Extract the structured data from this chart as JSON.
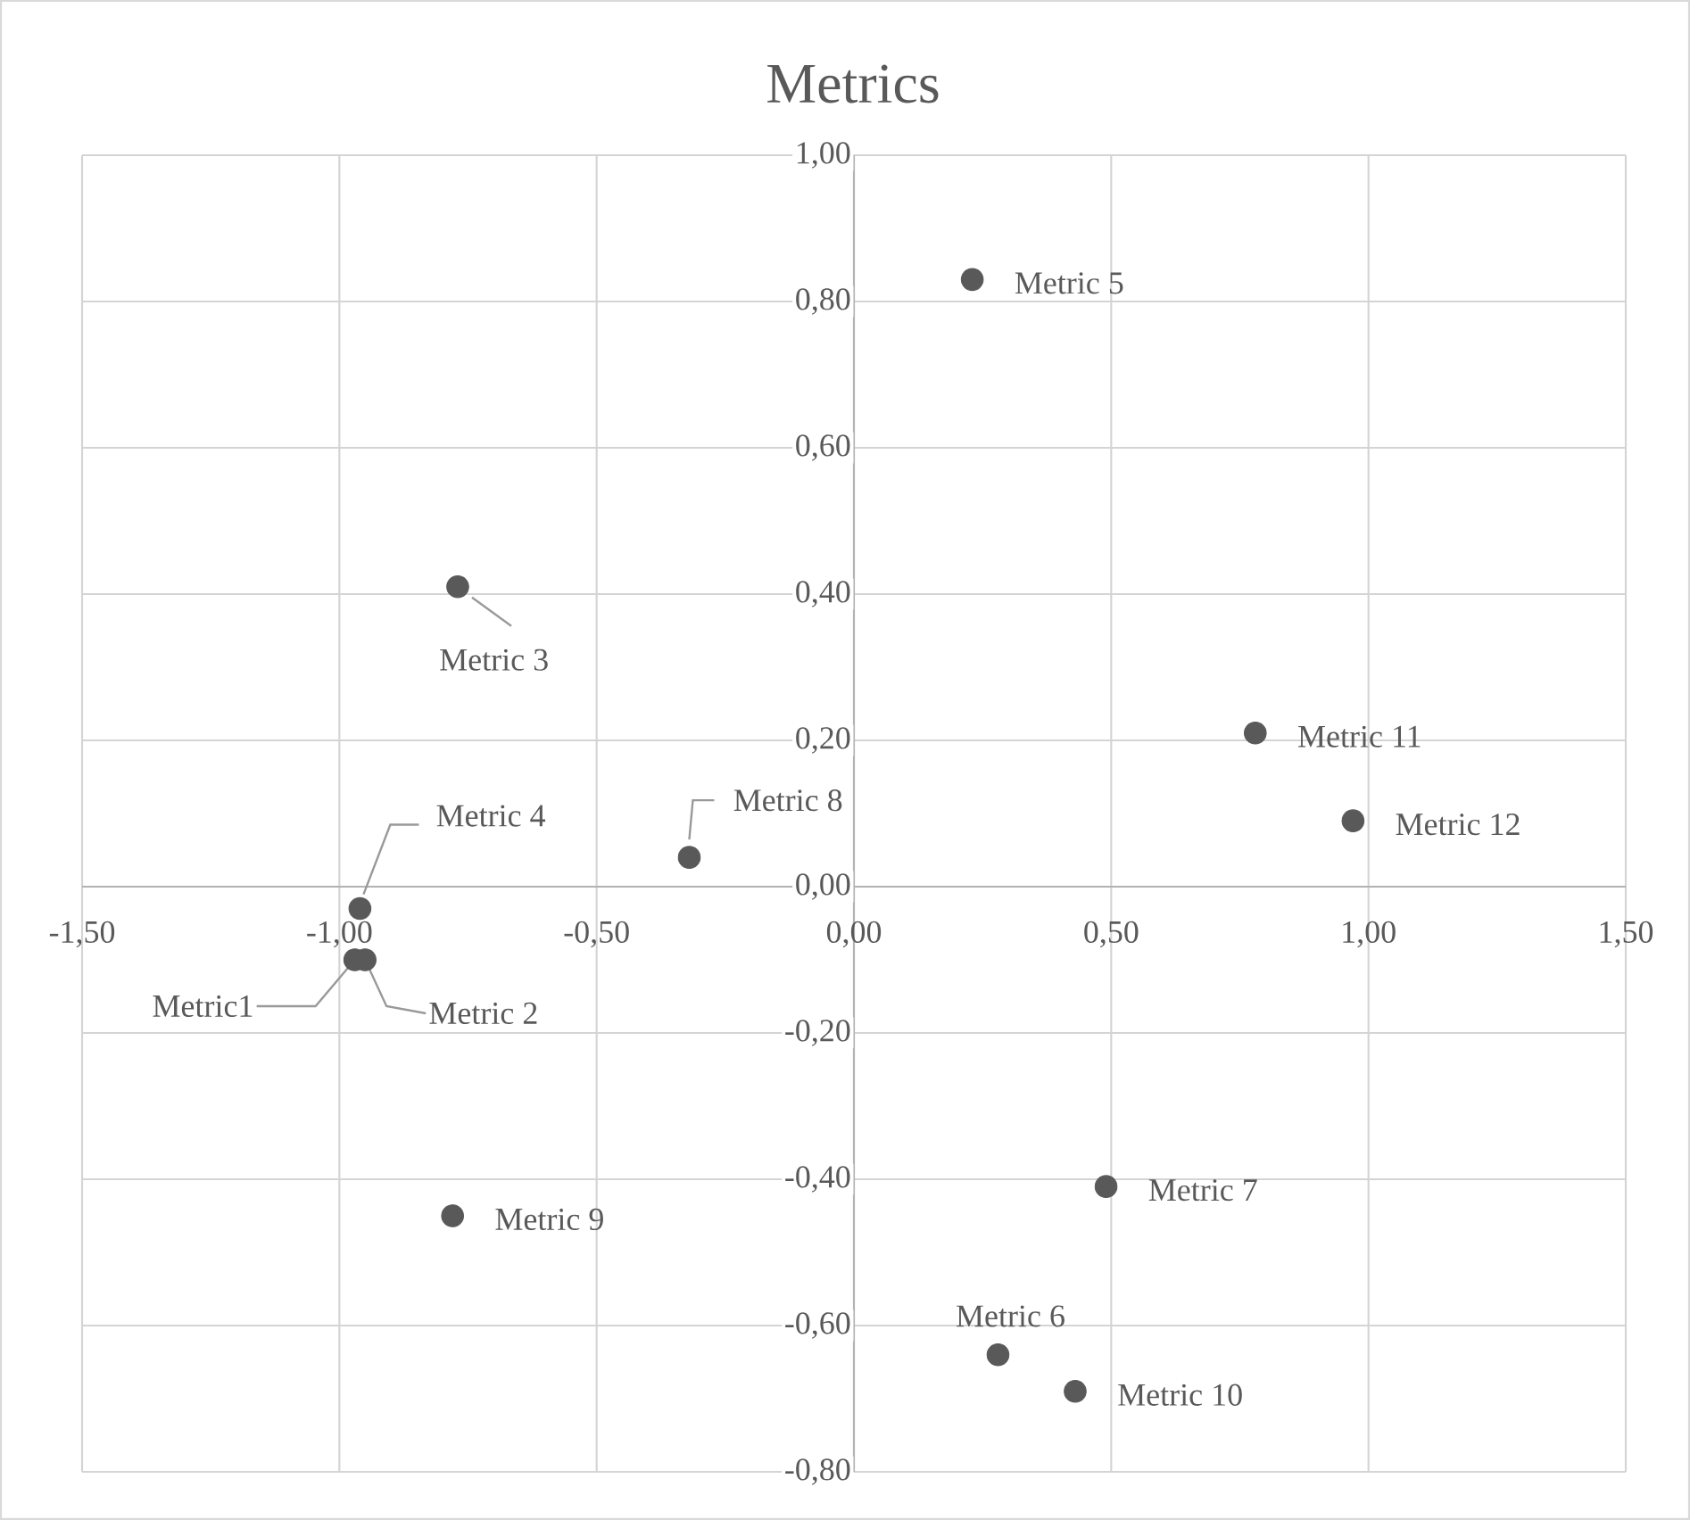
{
  "chart_data": {
    "type": "scatter",
    "title": "Metrics",
    "x": [
      -0.97,
      -0.95,
      -0.77,
      -0.96,
      0.23,
      0.28,
      0.49,
      -0.32,
      -0.78,
      0.43,
      0.78,
      0.97
    ],
    "values": [
      -0.1,
      -0.1,
      0.41,
      -0.03,
      0.83,
      -0.64,
      -0.41,
      0.04,
      -0.45,
      -0.69,
      0.21,
      0.09
    ],
    "color": "#595959",
    "marker": "circle",
    "grid": true,
    "xlim": [
      -1.5,
      1.5
    ],
    "ylim": [
      -0.8,
      1.0
    ],
    "xticks": [
      {
        "value": -1.5,
        "label": "-1,50"
      },
      {
        "value": -1.0,
        "label": "-1,00"
      },
      {
        "value": -0.5,
        "label": "-0,50"
      },
      {
        "value": 0,
        "label": "0,00"
      },
      {
        "value": 0.5,
        "label": "0,50"
      },
      {
        "value": 1.0,
        "label": "1,00"
      },
      {
        "value": 1.5,
        "label": "1,50"
      }
    ],
    "yticks": [
      {
        "value": -0.8,
        "label": "-0,80"
      },
      {
        "value": -0.6,
        "label": "-0,60"
      },
      {
        "value": -0.4,
        "label": "-0,40"
      },
      {
        "value": -0.2,
        "label": "-0,20"
      },
      {
        "value": 0,
        "label": "0,00"
      },
      {
        "value": 0.2,
        "label": "0,20"
      },
      {
        "value": 0.4,
        "label": "0,40"
      },
      {
        "value": 0.6,
        "label": "0,60"
      },
      {
        "value": 0.8,
        "label": "0,80"
      },
      {
        "value": 1.0,
        "label": "1,00"
      }
    ],
    "annotations": [
      {
        "text": "Metric1",
        "x": -0.97,
        "y": -0.1
      },
      {
        "text": "Metric 2",
        "x": -0.95,
        "y": -0.1
      },
      {
        "text": "Metric 3",
        "x": -0.77,
        "y": 0.41
      },
      {
        "text": "Metric 4",
        "x": -0.96,
        "y": -0.03
      },
      {
        "text": "Metric 5",
        "x": 0.23,
        "y": 0.83
      },
      {
        "text": "Metric 6",
        "x": 0.28,
        "y": -0.64
      },
      {
        "text": "Metric 7",
        "x": 0.49,
        "y": -0.41
      },
      {
        "text": "Metric 8",
        "x": -0.32,
        "y": 0.04
      },
      {
        "text": "Metric 9",
        "x": -0.78,
        "y": -0.45
      },
      {
        "text": "Metric 10",
        "x": 0.43,
        "y": -0.69
      },
      {
        "text": "Metric 11",
        "x": 0.78,
        "y": 0.21
      },
      {
        "text": "Metric 12",
        "x": 0.97,
        "y": 0.09
      }
    ]
  }
}
